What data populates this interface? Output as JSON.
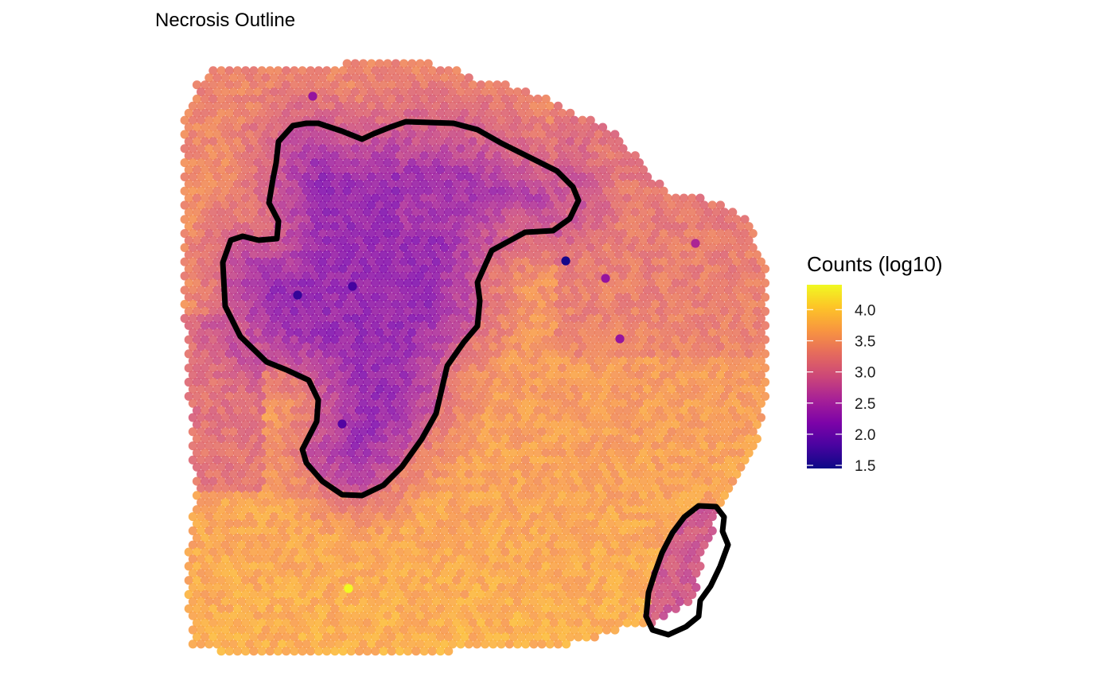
{
  "chart_data": {
    "type": "heatmap",
    "subtype": "spatial spot map",
    "title": "Necrosis Outline",
    "legend": {
      "title": "Counts (log10)",
      "ticks": [
        1.5,
        2.0,
        2.5,
        3.0,
        3.5,
        4.0
      ],
      "tick_labels": [
        "1.5",
        "2.0",
        "2.5",
        "3.0",
        "3.5",
        "4.0"
      ],
      "range": [
        1.45,
        4.4
      ],
      "colormap": "plasma",
      "placement": "right"
    },
    "colors": {
      "outline": "#000000",
      "low": "#0d0887",
      "mid": "#cc4778",
      "high": "#f0f921"
    },
    "regions": {
      "large_necrosis_mean_log10_counts": 2.5,
      "small_necrosis_mean_log10_counts": 3.0,
      "tissue_background_mean_log10_counts": 3.5,
      "min_value_shown": 1.5,
      "max_value_shown": 4.4
    },
    "grid": false,
    "axes_visible": false
  }
}
